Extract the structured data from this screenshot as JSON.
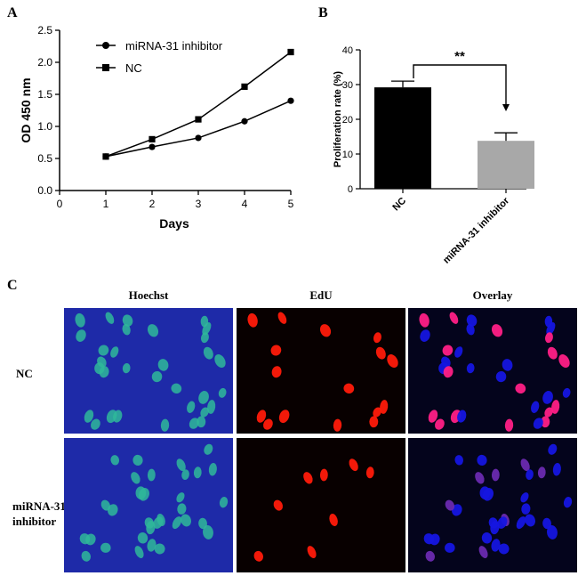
{
  "panels": {
    "a": "A",
    "b": "B",
    "c": "C"
  },
  "chart_data": [
    {
      "type": "line",
      "panel": "A",
      "xlabel": "Days",
      "ylabel": "OD 450 nm",
      "x": [
        1,
        2,
        3,
        4,
        5
      ],
      "xlim": [
        0,
        5
      ],
      "ylim": [
        0,
        2.5
      ],
      "xticks": [
        "0",
        "1",
        "2",
        "3",
        "4",
        "5"
      ],
      "yticks": [
        "0.0",
        "0.5",
        "1.0",
        "1.5",
        "2.0",
        "2.5"
      ],
      "legend_placement": "top-left",
      "series": [
        {
          "name": "miRNA-31 inhibitor",
          "marker": "circle",
          "values": [
            0.53,
            0.68,
            0.82,
            1.08,
            1.4
          ]
        },
        {
          "name": "NC",
          "marker": "square",
          "values": [
            0.53,
            0.8,
            1.11,
            1.62,
            2.16
          ]
        }
      ]
    },
    {
      "type": "bar",
      "panel": "B",
      "ylabel": "Proliferation rate (%)",
      "categories": [
        "NC",
        "miRNA-31 inhibitor"
      ],
      "values": [
        29.2,
        13.8
      ],
      "errors": [
        1.8,
        2.3
      ],
      "colors": [
        "#000000",
        "#a8a8a8"
      ],
      "ylim": [
        0,
        40
      ],
      "yticks": [
        "0",
        "10",
        "20",
        "30",
        "40"
      ],
      "significance": "**"
    }
  ],
  "microscopy": {
    "columns": [
      "Hoechst",
      "EdU",
      "Overlay"
    ],
    "rows": [
      {
        "label_line1": "NC",
        "label_line2": ""
      },
      {
        "label_line1": "miRNA-31",
        "label_line2": "inhibitor"
      }
    ],
    "colors": {
      "hoechst_bg": "#1e2aa8",
      "hoechst_nucleus": "#2fb89a",
      "edu_bg": "#080000",
      "edu_nucleus": "#ff1a0a",
      "overlay_bg": "#04041c",
      "overlay_blue": "#1515e0",
      "overlay_pink": "#ff1f86",
      "overlay_purple": "#6a2ab0"
    }
  }
}
